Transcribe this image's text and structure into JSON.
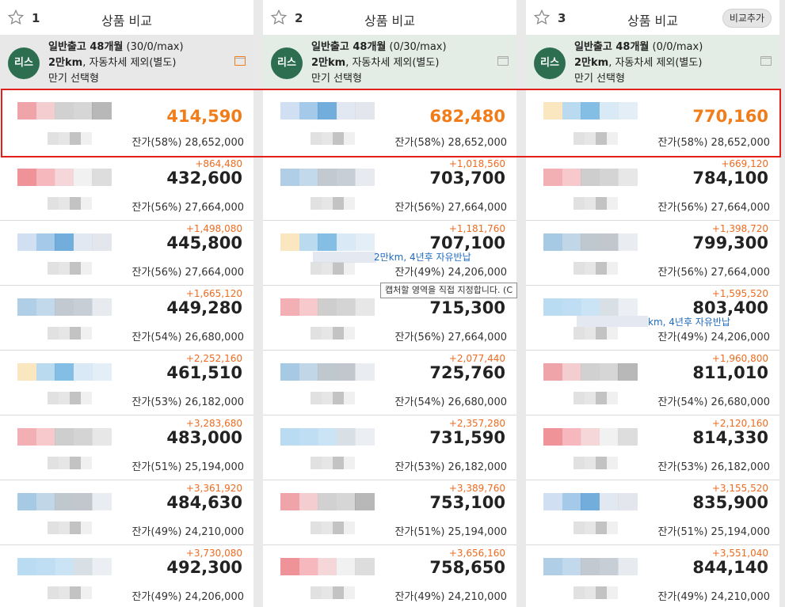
{
  "columns": [
    {
      "num": "1",
      "title": "상품 비교",
      "add_label": "",
      "info_bg": "#e8e8e8",
      "info_icon_color": "#f07d1a",
      "badge": "리스",
      "line1_bold": "일반출고 48개월",
      "line1_rest": " (30/0/max)",
      "line2_bold": "2만km",
      "line2_rest": ", 자동차세 제외(별도)",
      "line3": "만기 선택형",
      "rows": [
        {
          "diff": "",
          "price": "414,590",
          "resid": "잔가(58%) 28,652,000",
          "highlight": true
        },
        {
          "diff": "+864,480",
          "price": "432,600",
          "resid": "잔가(56%) 27,664,000"
        },
        {
          "diff": "+1,498,080",
          "price": "445,800",
          "resid": "잔가(56%) 27,664,000"
        },
        {
          "diff": "+1,665,120",
          "price": "449,280",
          "resid": "잔가(54%) 26,680,000"
        },
        {
          "diff": "+2,252,160",
          "price": "461,510",
          "resid": "잔가(53%) 26,182,000"
        },
        {
          "diff": "+3,283,680",
          "price": "483,000",
          "resid": "잔가(51%) 25,194,000"
        },
        {
          "diff": "+3,361,920",
          "price": "484,630",
          "resid": "잔가(49%) 24,210,000"
        },
        {
          "diff": "+3,730,080",
          "price": "492,300",
          "resid": "잔가(49%) 24,206,000"
        }
      ]
    },
    {
      "num": "2",
      "title": "상품 비교",
      "add_label": "",
      "info_bg": "#e3ede5",
      "info_icon_color": "#aaaaaa",
      "badge": "리스",
      "line1_bold": "일반출고 48개월",
      "line1_rest": " (0/30/max)",
      "line2_bold": "2만km",
      "line2_rest": ", 자동차세 제외(별도)",
      "line3": "만기 선택형",
      "rows": [
        {
          "diff": "",
          "price": "682,480",
          "resid": "잔가(58%) 28,652,000",
          "highlight": true
        },
        {
          "diff": "+1,018,560",
          "price": "703,700",
          "resid": "잔가(56%) 27,664,000"
        },
        {
          "diff": "+1,181,760",
          "price": "707,100",
          "resid": "잔가(49%) 24,206,000"
        },
        {
          "diff": "",
          "price": "715,300",
          "resid": "잔가(56%) 27,664,000"
        },
        {
          "diff": "+2,077,440",
          "price": "725,760",
          "resid": "잔가(54%) 26,680,000"
        },
        {
          "diff": "+2,357,280",
          "price": "731,590",
          "resid": "잔가(53%) 26,182,000"
        },
        {
          "diff": "+3,389,760",
          "price": "753,100",
          "resid": "잔가(51%) 25,194,000"
        },
        {
          "diff": "+3,656,160",
          "price": "758,650",
          "resid": "잔가(49%) 24,210,000"
        }
      ]
    },
    {
      "num": "3",
      "title": "상품 비교",
      "add_label": "비교추가",
      "info_bg": "#e3ede5",
      "info_icon_color": "#aaaaaa",
      "badge": "리스",
      "line1_bold": "일반출고 48개월",
      "line1_rest": " (0/0/max)",
      "line2_bold": "2만km",
      "line2_rest": ", 자동차세 제외(별도)",
      "line3": "만기 선택형",
      "rows": [
        {
          "diff": "",
          "price": "770,160",
          "resid": "잔가(58%) 28,652,000",
          "highlight": true
        },
        {
          "diff": "+669,120",
          "price": "784,100",
          "resid": "잔가(56%) 27,664,000"
        },
        {
          "diff": "+1,398,720",
          "price": "799,300",
          "resid": "잔가(56%) 27,664,000"
        },
        {
          "diff": "+1,595,520",
          "price": "803,400",
          "resid": "잔가(49%) 24,206,000"
        },
        {
          "diff": "+1,960,800",
          "price": "811,010",
          "resid": "잔가(54%) 26,680,000"
        },
        {
          "diff": "+2,120,160",
          "price": "814,330",
          "resid": "잔가(53%) 26,182,000"
        },
        {
          "diff": "+3,155,520",
          "price": "835,900",
          "resid": "잔가(51%) 25,194,000"
        },
        {
          "diff": "+3,551,040",
          "price": "844,140",
          "resid": "잔가(49%) 24,210,000"
        }
      ]
    }
  ],
  "overlays": {
    "tooltip": "캡처할 영역을 직접 지정합니다. (C",
    "col2_hint": "2만km, 4년후 자유반납",
    "col3_hint": "km, 4년후 자유반납"
  },
  "colors": {
    "highlight_border": "#e1201b",
    "price_highlight": "#f07d1a",
    "diff": "#ee6b1f",
    "badge": "#2c6e4f"
  }
}
